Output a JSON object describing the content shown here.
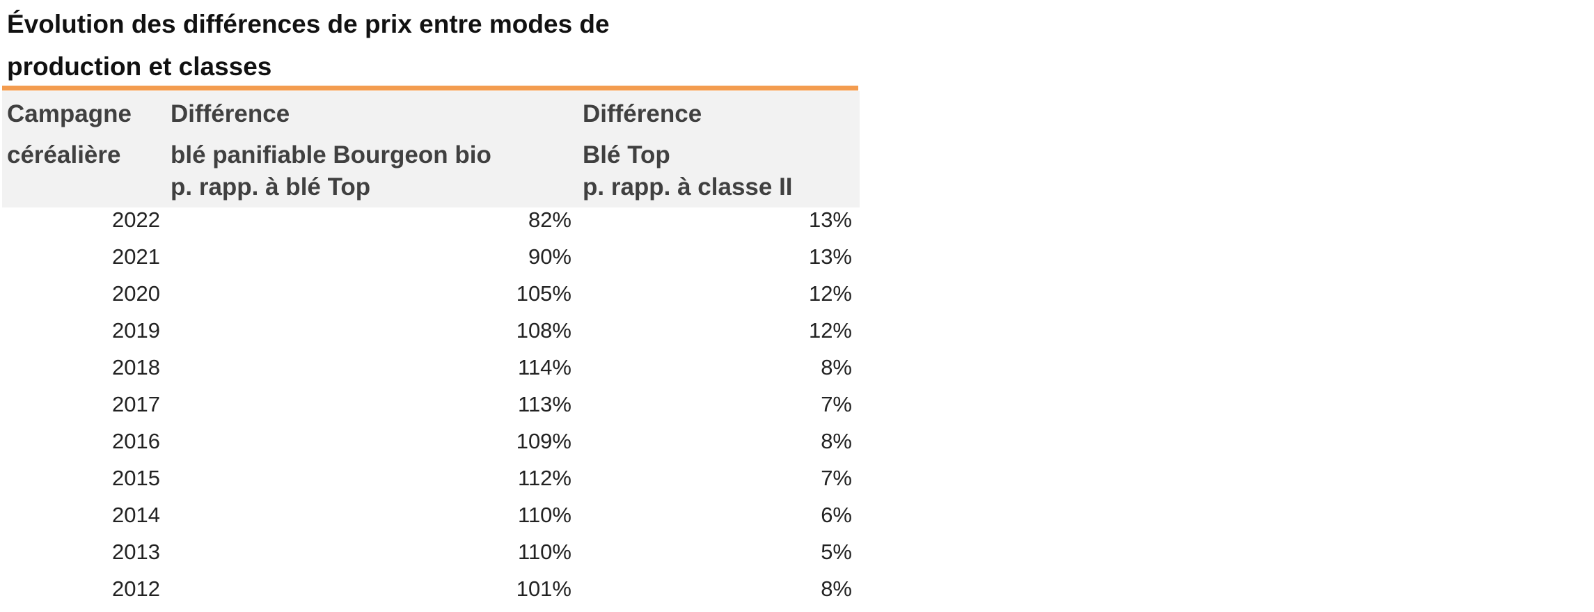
{
  "title": [
    "Évolution des différences de prix entre modes de",
    "production et classes"
  ],
  "table": {
    "header": [
      [
        "Campagne",
        "céréalière"
      ],
      [
        "Différence",
        "blé panifiable Bourgeon bio",
        "p. rapp. à blé Top"
      ],
      [
        "Différence",
        "Blé Top",
        "p. rapp. à classe II"
      ]
    ],
    "rows": [
      [
        "2022",
        "82%",
        "13%"
      ],
      [
        "2021",
        "90%",
        "13%"
      ],
      [
        "2020",
        "105%",
        "12%"
      ],
      [
        "2019",
        "108%",
        "12%"
      ],
      [
        "2018",
        "114%",
        "8%"
      ],
      [
        "2017",
        "113%",
        "7%"
      ],
      [
        "2016",
        "109%",
        "8%"
      ],
      [
        "2015",
        "112%",
        "7%"
      ],
      [
        "2014",
        "110%",
        "6%"
      ],
      [
        "2013",
        "110%",
        "5%"
      ],
      [
        "2012",
        "101%",
        "8%"
      ]
    ]
  }
}
